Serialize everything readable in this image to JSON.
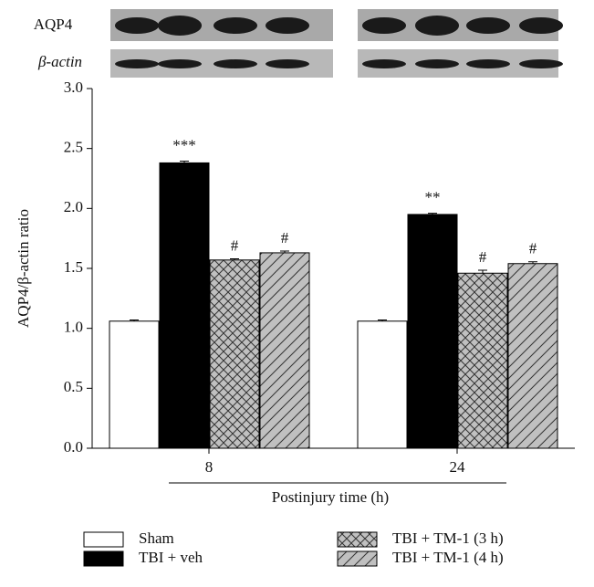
{
  "chart_data": {
    "type": "bar",
    "blot_labels": [
      "AQP4",
      "β-actin"
    ],
    "ylabel": "AQP4/β-actin ratio",
    "xlabel": "Postinjury time (h)",
    "categories": [
      "8",
      "24"
    ],
    "ylim": [
      0,
      3
    ],
    "yticks": [
      {
        "value": 0,
        "label": "0.0"
      },
      {
        "value": 0.5,
        "label": "0.5"
      },
      {
        "value": 1,
        "label": "1.0"
      },
      {
        "value": 1.5,
        "label": "1.5"
      },
      {
        "value": 2,
        "label": "2.0"
      },
      {
        "value": 2.5,
        "label": "2.5"
      },
      {
        "value": 3,
        "label": "3.0"
      }
    ],
    "series": [
      {
        "name": "Sham",
        "color": "#ffffff",
        "pattern": "none",
        "values": [
          1.06,
          1.06
        ],
        "errors": [
          0.01,
          0.01
        ],
        "annotations": [
          null,
          null
        ]
      },
      {
        "name": "TBI + veh",
        "color": "#000000",
        "pattern": "none",
        "values": [
          2.38,
          1.95
        ],
        "errors": [
          0.015,
          0.01
        ],
        "annotations": [
          "***",
          "**"
        ]
      },
      {
        "name": "TBI + TM-1 (3 h)",
        "color": "#c0c0c0",
        "pattern": "crosshatch",
        "values": [
          1.57,
          1.46
        ],
        "errors": [
          0.01,
          0.025
        ],
        "annotations": [
          "#",
          "#"
        ]
      },
      {
        "name": "TBI + TM-1 (4 h)",
        "color": "#c0c0c0",
        "pattern": "diagonal",
        "values": [
          1.63,
          1.54
        ],
        "errors": [
          0.015,
          0.015
        ],
        "annotations": [
          "#",
          "#"
        ]
      }
    ]
  }
}
